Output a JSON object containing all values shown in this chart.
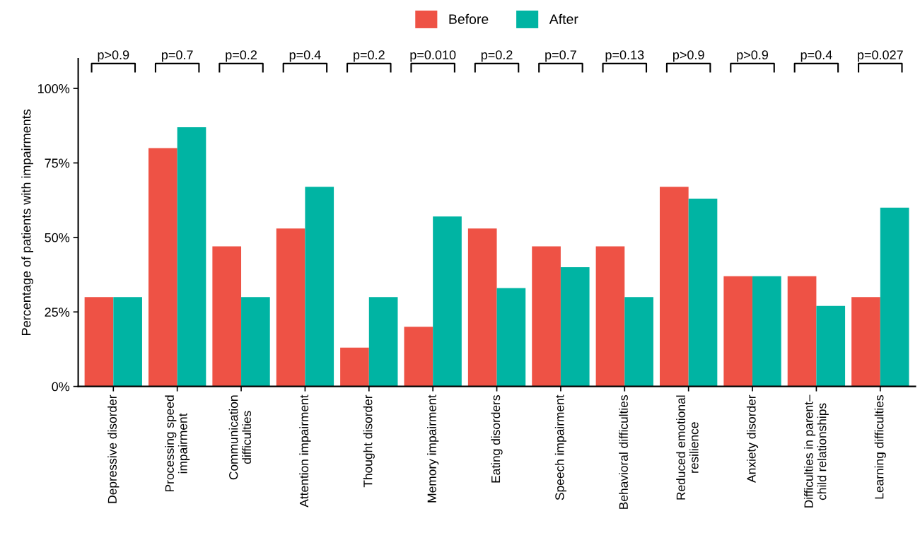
{
  "chart_data": {
    "type": "bar",
    "ylabel": "Percentage of patients with impairments",
    "categories": [
      "Depressive disorder",
      "Processing speed\nimpairment",
      "Communication\ndifficulties",
      "Attention impairment",
      "Thought disorder",
      "Memory impairment",
      "Eating disorders",
      "Speech impairment",
      "Behavioral difficulties",
      "Reduced emotional\nresilience",
      "Anxiety disorder",
      "Difficulties in parent–\nchild relationships",
      "Learning difficulties"
    ],
    "series": [
      {
        "name": "Before",
        "color": "#ee5245",
        "values": [
          30,
          80,
          47,
          53,
          13,
          20,
          53,
          47,
          47,
          67,
          37,
          37,
          30
        ]
      },
      {
        "name": "After",
        "color": "#00b4a3",
        "values": [
          30,
          87,
          30,
          67,
          30,
          57,
          33,
          40,
          30,
          63,
          37,
          27,
          60
        ]
      }
    ],
    "ylim": [
      0,
      110
    ],
    "yticks": [
      {
        "value": 0,
        "label": "0%"
      },
      {
        "value": 25,
        "label": "25%"
      },
      {
        "value": 50,
        "label": "50%"
      },
      {
        "value": 75,
        "label": "75%"
      },
      {
        "value": 100,
        "label": "100%"
      }
    ],
    "annotations": [
      "p>0.9",
      "p=0.7",
      "p=0.2",
      "p=0.4",
      "p=0.2",
      "p=0.010",
      "p=0.2",
      "p=0.7",
      "p=0.13",
      "p>0.9",
      "p>0.9",
      "p=0.4",
      "p=0.027"
    ],
    "grid": false,
    "legend": "top"
  }
}
